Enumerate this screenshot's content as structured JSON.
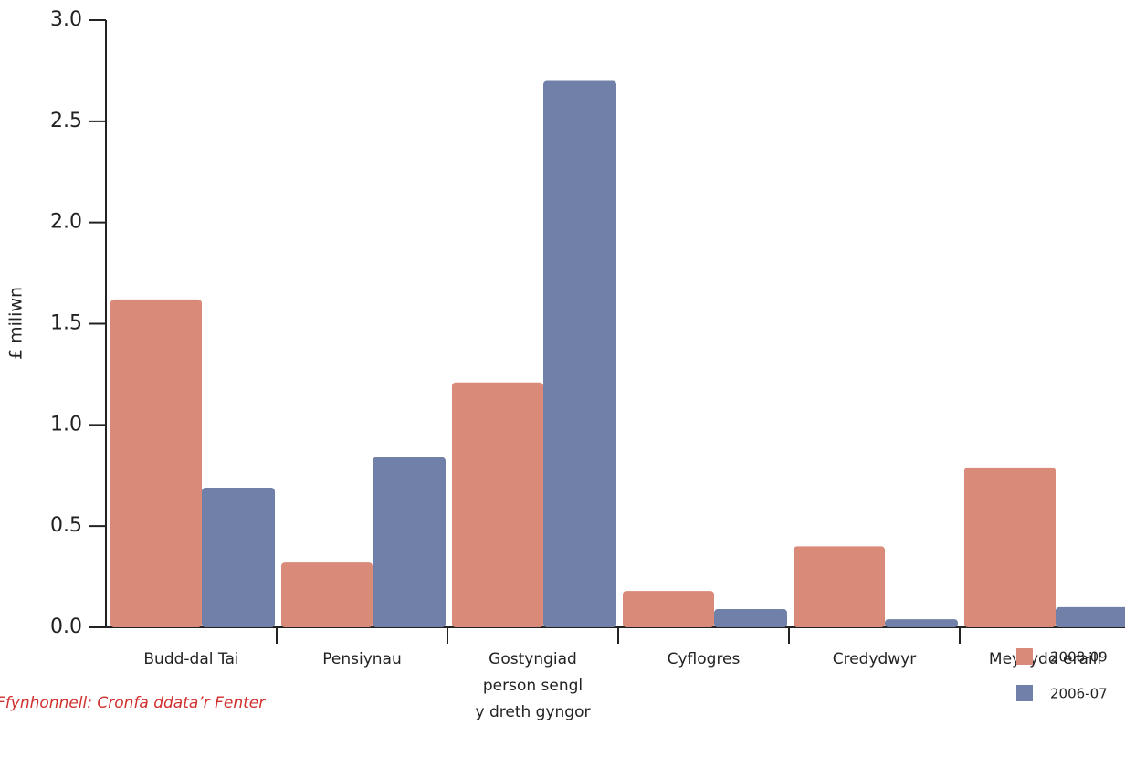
{
  "chart_data": {
    "type": "bar",
    "y_label": "£ miliwn",
    "source": "Ffynhonnell: Cronfa ddata’r Fenter",
    "categories": [
      [
        "Budd-dal Tai"
      ],
      [
        "Pensiynau"
      ],
      [
        "Gostyngiad",
        "person sengl",
        "y dreth gyngor"
      ],
      [
        "Cyflogres"
      ],
      [
        "Credydwyr"
      ],
      [
        "Meysydd eraill"
      ]
    ],
    "series": [
      {
        "name": "2008-09",
        "color": "#d98a78",
        "values": [
          1.62,
          0.32,
          1.21,
          0.18,
          0.4,
          0.79
        ]
      },
      {
        "name": "2006-07",
        "color": "#7080a8",
        "values": [
          0.69,
          0.84,
          2.7,
          0.09,
          0.04,
          0.1
        ]
      }
    ],
    "ylim": [
      0,
      3.0
    ],
    "yticks": [
      {
        "value": 0,
        "label": "0.0"
      },
      0.5,
      {
        "value": 1,
        "label": "1.0"
      },
      1.5,
      {
        "value": 2,
        "label": "2.0"
      },
      2.5,
      {
        "value": 3,
        "label": "3.0"
      }
    ]
  }
}
